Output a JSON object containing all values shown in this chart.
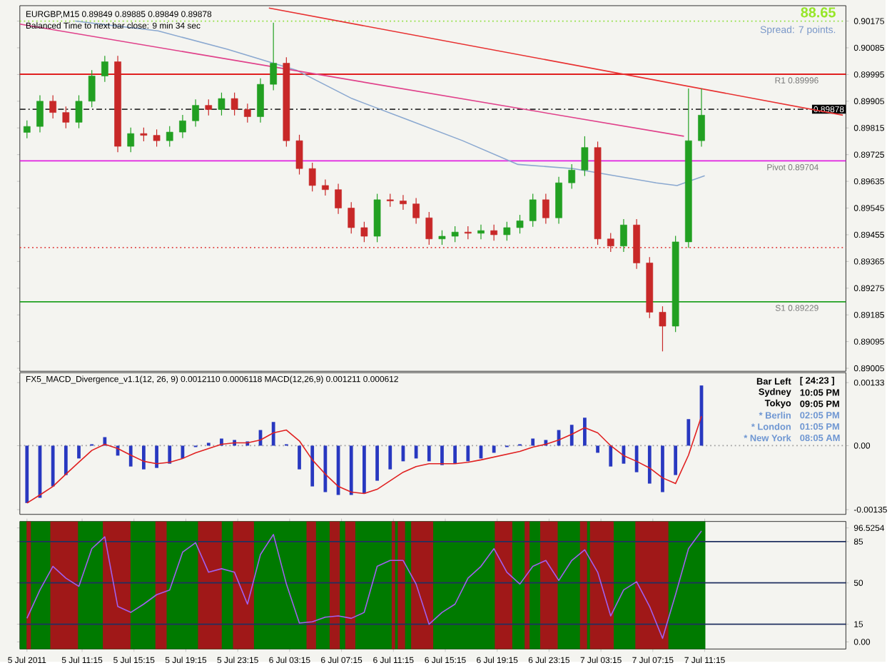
{
  "chart_data": [
    {
      "type": "candlestick",
      "title": "EURGBP,M15 0.89849 0.89885 0.89849 0.89878",
      "subtitle": "Balanced Time to next bar close: 9 min 34 sec",
      "annotations": [
        "88.65",
        "Spread: 7 points."
      ],
      "x": [
        "2011-07-05T07:00",
        "2011-07-05T08:00",
        "2011-07-05T09:00",
        "2011-07-05T10:00",
        "2011-07-05T11:00",
        "2011-07-05T12:00",
        "2011-07-05T13:00",
        "2011-07-05T14:00",
        "2011-07-05T15:00",
        "2011-07-05T16:00",
        "2011-07-05T17:00",
        "2011-07-05T18:00",
        "2011-07-05T19:00",
        "2011-07-05T20:00",
        "2011-07-05T21:00",
        "2011-07-05T22:00",
        "2011-07-05T23:00",
        "2011-07-06T00:00",
        "2011-07-06T01:00",
        "2011-07-06T02:00",
        "2011-07-06T03:00",
        "2011-07-06T04:00",
        "2011-07-06T05:00",
        "2011-07-06T06:00",
        "2011-07-06T07:00",
        "2011-07-06T08:00",
        "2011-07-06T09:00",
        "2011-07-06T10:00",
        "2011-07-06T11:00",
        "2011-07-06T12:00",
        "2011-07-06T13:00",
        "2011-07-06T14:00",
        "2011-07-06T15:00",
        "2011-07-06T16:00",
        "2011-07-06T17:00",
        "2011-07-06T18:00",
        "2011-07-06T19:00",
        "2011-07-06T20:00",
        "2011-07-06T21:00",
        "2011-07-06T22:00",
        "2011-07-06T23:00",
        "2011-07-07T00:00",
        "2011-07-07T01:00",
        "2011-07-07T02:00",
        "2011-07-07T03:00",
        "2011-07-07T04:00",
        "2011-07-07T05:00",
        "2011-07-07T06:00",
        "2011-07-07T07:00",
        "2011-07-07T08:00",
        "2011-07-07T09:00",
        "2011-07-07T10:00",
        "2011-07-07T11:00"
      ],
      "ohlc": [
        [
          0.898,
          0.8984,
          0.8978,
          0.8982
        ],
        [
          0.8982,
          0.89925,
          0.898,
          0.89905
        ],
        [
          0.89905,
          0.89925,
          0.89847,
          0.89867
        ],
        [
          0.89867,
          0.89887,
          0.89814,
          0.89834
        ],
        [
          0.89834,
          0.89925,
          0.89814,
          0.89905
        ],
        [
          0.89905,
          0.9001,
          0.89885,
          0.8999
        ],
        [
          0.8999,
          0.90058,
          0.8997,
          0.90038
        ],
        [
          0.90038,
          0.90058,
          0.89733,
          0.89753
        ],
        [
          0.89753,
          0.89816,
          0.89733,
          0.89796
        ],
        [
          0.89796,
          0.89816,
          0.8977,
          0.8979
        ],
        [
          0.8979,
          0.8981,
          0.89752,
          0.89772
        ],
        [
          0.89772,
          0.89821,
          0.89752,
          0.89801
        ],
        [
          0.89801,
          0.89859,
          0.89781,
          0.89839
        ],
        [
          0.89839,
          0.89911,
          0.89819,
          0.89891
        ],
        [
          0.89891,
          0.89911,
          0.89857,
          0.89877
        ],
        [
          0.89877,
          0.89934,
          0.89857,
          0.89914
        ],
        [
          0.89914,
          0.89934,
          0.89857,
          0.89877
        ],
        [
          0.89877,
          0.89897,
          0.89833,
          0.89853
        ],
        [
          0.89853,
          0.89982,
          0.89833,
          0.89962
        ],
        [
          0.89962,
          0.9017,
          0.89942,
          0.90033
        ],
        [
          0.90033,
          0.90053,
          0.89752,
          0.89772
        ],
        [
          0.89772,
          0.89792,
          0.89658,
          0.89678
        ],
        [
          0.89678,
          0.89698,
          0.89601,
          0.89621
        ],
        [
          0.89621,
          0.89641,
          0.89587,
          0.89607
        ],
        [
          0.89607,
          0.89627,
          0.89525,
          0.89545
        ],
        [
          0.89545,
          0.89565,
          0.89459,
          0.89479
        ],
        [
          0.89479,
          0.89499,
          0.8943,
          0.8945
        ],
        [
          0.8945,
          0.89593,
          0.8943,
          0.89573
        ],
        [
          0.89573,
          0.89593,
          0.89549,
          0.89569
        ],
        [
          0.89569,
          0.89589,
          0.89539,
          0.89559
        ],
        [
          0.89559,
          0.89579,
          0.89492,
          0.89512
        ],
        [
          0.89512,
          0.89532,
          0.89421,
          0.89441
        ],
        [
          0.89441,
          0.8947,
          0.89421,
          0.8945
        ],
        [
          0.8945,
          0.89484,
          0.8943,
          0.89464
        ],
        [
          0.89464,
          0.89484,
          0.8944,
          0.8946
        ],
        [
          0.8946,
          0.89489,
          0.8944,
          0.89469
        ],
        [
          0.89469,
          0.89489,
          0.89435,
          0.89455
        ],
        [
          0.89455,
          0.89499,
          0.89435,
          0.89479
        ],
        [
          0.89479,
          0.89522,
          0.89459,
          0.89502
        ],
        [
          0.89502,
          0.89593,
          0.89482,
          0.89573
        ],
        [
          0.89573,
          0.89593,
          0.89492,
          0.89512
        ],
        [
          0.89512,
          0.8965,
          0.89492,
          0.8963
        ],
        [
          0.8963,
          0.89693,
          0.8961,
          0.89673
        ],
        [
          0.89673,
          0.89787,
          0.89653,
          0.89749
        ],
        [
          0.89749,
          0.89769,
          0.89421,
          0.89441
        ],
        [
          0.89441,
          0.89461,
          0.89397,
          0.89417
        ],
        [
          0.89417,
          0.89508,
          0.89397,
          0.89488
        ],
        [
          0.89488,
          0.89508,
          0.8934,
          0.8936
        ],
        [
          0.8936,
          0.8938,
          0.89174,
          0.89194
        ],
        [
          0.89194,
          0.89214,
          0.89062,
          0.89147
        ],
        [
          0.89147,
          0.89451,
          0.89127,
          0.89431
        ],
        [
          0.89431,
          0.89948,
          0.89411,
          0.89772
        ],
        [
          0.89772,
          0.89948,
          0.89752,
          0.89858
        ]
      ],
      "series": [
        {
          "type": "line",
          "color": "#8aa8d0",
          "x": [
            "2011-07-05T10:43",
            "2011-07-05T17:06",
            "2011-07-05T22:27",
            "2011-07-06T03:48",
            "2011-07-06T08:03",
            "2011-07-06T12:19",
            "2011-07-06T16:35",
            "2011-07-06T20:51",
            "2011-07-07T01:07",
            "2011-07-07T04:19",
            "2011-07-07T07:31",
            "2011-07-07T09:07",
            "2011-07-07T11:15"
          ],
          "values": [
            0.90175,
            0.90142,
            0.9008,
            0.90009,
            0.89914,
            0.89843,
            0.89772,
            0.89692,
            0.89678,
            0.89654,
            0.8963,
            0.89621,
            0.89654
          ]
        },
        {
          "type": "line",
          "color": "#e0408a",
          "x": [
            "2011-07-05T06:27",
            "2011-07-07T09:39"
          ],
          "values": [
            0.90165,
            0.89787
          ]
        },
        {
          "type": "line",
          "color": "#e83030",
          "x": [
            "2011-07-06T01:39",
            "2011-07-07T21:54"
          ],
          "values": [
            0.90219,
            0.89858
          ]
        }
      ],
      "xlim": [
        "2011-07-05T06:27",
        "2011-07-07T22:08"
      ],
      "ylim": [
        0.88995,
        0.90227
      ],
      "yticks": [
        0.90175,
        0.90085,
        0.89995,
        0.89905,
        0.89815,
        0.89725,
        0.89635,
        0.89545,
        0.89455,
        0.89365,
        0.89275,
        0.89185,
        0.89095,
        0.89005
      ],
      "tick_labels": "y",
      "ref_lines": [
        {
          "axis": "y",
          "value": 0.90175,
          "color": "#90e040",
          "line_style": "dotted"
        },
        {
          "axis": "y",
          "value": 0.89996,
          "label": "R1 0.89996",
          "color": "#e02020"
        },
        {
          "axis": "y",
          "value": 0.89878,
          "label": "0.89878",
          "color": "#303030",
          "line_style": "dashed"
        },
        {
          "axis": "y",
          "value": 0.89704,
          "label": "Pivot 0.89704",
          "color": "#e020e0"
        },
        {
          "axis": "y",
          "value": 0.89412,
          "color": "#e04040",
          "line_style": "dotted"
        },
        {
          "axis": "y",
          "value": 0.89229,
          "label": "S1 0.89229",
          "color": "#20a020"
        }
      ]
    },
    {
      "type": "bar",
      "title": "FX5_MACD_Divergence_v1.1(12, 26, 9) 0.0012110 0.0006118 MACD(12,26,9) 0.001211 0.000612",
      "annotations": [
        "Bar Left",
        "[ 24:23 ]",
        "Sydney",
        "10:05 PM",
        "Tokyo",
        "09:05 PM",
        "* Berlin",
        "02:05 PM",
        "* London",
        "01:05 PM",
        "* New York",
        "08:05 AM"
      ],
      "x": [
        "2011-07-05T07:00",
        "2011-07-05T08:00",
        "2011-07-05T09:00",
        "2011-07-05T10:00",
        "2011-07-05T11:00",
        "2011-07-05T12:00",
        "2011-07-05T13:00",
        "2011-07-05T14:00",
        "2011-07-05T15:00",
        "2011-07-05T16:00",
        "2011-07-05T17:00",
        "2011-07-05T18:00",
        "2011-07-05T19:00",
        "2011-07-05T20:00",
        "2011-07-05T21:00",
        "2011-07-05T22:00",
        "2011-07-05T23:00",
        "2011-07-06T00:00",
        "2011-07-06T01:00",
        "2011-07-06T02:00",
        "2011-07-06T03:00",
        "2011-07-06T04:00",
        "2011-07-06T05:00",
        "2011-07-06T06:00",
        "2011-07-06T07:00",
        "2011-07-06T08:00",
        "2011-07-06T09:00",
        "2011-07-06T10:00",
        "2011-07-06T11:00",
        "2011-07-06T12:00",
        "2011-07-06T13:00",
        "2011-07-06T14:00",
        "2011-07-06T15:00",
        "2011-07-06T16:00",
        "2011-07-06T17:00",
        "2011-07-06T18:00",
        "2011-07-06T19:00",
        "2011-07-06T20:00",
        "2011-07-06T21:00",
        "2011-07-06T22:00",
        "2011-07-06T23:00",
        "2011-07-07T00:00",
        "2011-07-07T01:00",
        "2011-07-07T02:00",
        "2011-07-07T03:00",
        "2011-07-07T04:00",
        "2011-07-07T05:00",
        "2011-07-07T06:00",
        "2011-07-07T07:00",
        "2011-07-07T08:00",
        "2011-07-07T09:00",
        "2011-07-07T10:00",
        "2011-07-07T11:00"
      ],
      "series": [
        {
          "type": "bar",
          "color": "#2838c0",
          "values": [
            -0.00121,
            -0.0011,
            -0.00086,
            -0.00062,
            -0.00027,
            3e-05,
            0.00018,
            -0.00021,
            -0.00044,
            -0.0005,
            -0.00047,
            -0.00038,
            -0.00027,
            -3e-05,
            6e-05,
            0.00015,
            0.00012,
            9e-05,
            0.00033,
            0.0005,
            3e-05,
            -0.0005,
            -0.00086,
            -0.00098,
            -0.00104,
            -0.00104,
            -0.00101,
            -0.00074,
            -0.0005,
            -0.00033,
            -0.00027,
            -0.00033,
            -0.00041,
            -0.00038,
            -0.00033,
            -0.00027,
            -0.00015,
            -3e-05,
            3e-05,
            0.00015,
            0.00012,
            0.00033,
            0.00044,
            0.00059,
            -0.00015,
            -0.00044,
            -0.00038,
            -0.00056,
            -0.0008,
            -0.00098,
            -0.00062,
            0.00056,
            0.00127
          ]
        },
        {
          "type": "line",
          "color": "#e02020",
          "values": [
            -0.00121,
            -0.00104,
            -0.00086,
            -0.0006,
            -0.00035,
            -0.0001,
            3e-05,
            -6e-05,
            -0.0002,
            -0.00033,
            -0.00038,
            -0.00035,
            -0.00027,
            -0.00015,
            -6e-05,
            3e-05,
            6e-05,
            6e-05,
            0.00012,
            0.00027,
            0.00033,
            0.0001,
            -0.0003,
            -0.0006,
            -0.00086,
            -0.00098,
            -0.00101,
            -0.00092,
            -0.00074,
            -0.00056,
            -0.00044,
            -0.00038,
            -0.00038,
            -0.00038,
            -0.00035,
            -0.0003,
            -0.00024,
            -0.00018,
            -0.00012,
            -3e-05,
            3e-05,
            0.00012,
            0.00024,
            0.00038,
            0.00027,
            0,
            -0.00021,
            -0.00033,
            -0.00047,
            -0.00068,
            -0.0008,
            -0.0002,
            0.00062
          ]
        }
      ],
      "xlim": [
        "2011-07-05T06:27",
        "2011-07-07T22:08"
      ],
      "ylim": [
        -0.00145,
        0.00154
      ],
      "yticks": [
        0.00133,
        {
          "value": 0,
          "label": "0.00"
        },
        -0.00135
      ],
      "tick_labels": "y",
      "ref_lines": [
        {
          "axis": "y",
          "value": 0,
          "color": "#a0a0a0",
          "line_style": "dotted"
        }
      ]
    },
    {
      "type": "line",
      "x": [
        "2011-07-05T07:00",
        "2011-07-05T08:00",
        "2011-07-05T09:00",
        "2011-07-05T10:00",
        "2011-07-05T11:00",
        "2011-07-05T12:00",
        "2011-07-05T13:00",
        "2011-07-05T14:00",
        "2011-07-05T15:00",
        "2011-07-05T16:00",
        "2011-07-05T17:00",
        "2011-07-05T18:00",
        "2011-07-05T19:00",
        "2011-07-05T20:00",
        "2011-07-05T21:00",
        "2011-07-05T22:00",
        "2011-07-05T23:00",
        "2011-07-06T00:00",
        "2011-07-06T01:00",
        "2011-07-06T02:00",
        "2011-07-06T03:00",
        "2011-07-06T04:00",
        "2011-07-06T05:00",
        "2011-07-06T06:00",
        "2011-07-06T07:00",
        "2011-07-06T08:00",
        "2011-07-06T09:00",
        "2011-07-06T10:00",
        "2011-07-06T11:00",
        "2011-07-06T12:00",
        "2011-07-06T13:00",
        "2011-07-06T14:00",
        "2011-07-06T15:00",
        "2011-07-06T16:00",
        "2011-07-06T17:00",
        "2011-07-06T18:00",
        "2011-07-06T19:00",
        "2011-07-06T20:00",
        "2011-07-06T21:00",
        "2011-07-06T22:00",
        "2011-07-06T23:00",
        "2011-07-07T00:00",
        "2011-07-07T01:00",
        "2011-07-07T02:00",
        "2011-07-07T03:00",
        "2011-07-07T04:00",
        "2011-07-07T05:00",
        "2011-07-07T06:00",
        "2011-07-07T07:00",
        "2011-07-07T08:00",
        "2011-07-07T09:00",
        "2011-07-07T10:00",
        "2011-07-07T11:00"
      ],
      "series": [
        {
          "color": "#a060f0",
          "values": [
            20,
            44,
            64,
            54,
            47,
            79,
            89,
            30,
            25,
            32,
            40,
            44,
            76,
            84,
            59,
            62,
            59,
            32,
            74,
            91,
            49,
            16,
            17,
            21,
            22,
            20,
            25,
            64,
            69,
            69,
            49,
            15,
            25,
            32,
            54,
            64,
            79,
            59,
            49,
            64,
            69,
            52,
            69,
            78,
            59,
            22,
            44,
            51,
            30,
            3,
            40,
            79,
            94
          ]
        }
      ],
      "xlim": [
        "2011-07-05T06:27",
        "2011-07-07T22:08"
      ],
      "ylim": [
        -6,
        102
      ],
      "xticks": [
        {
          "value": "2011-07-05T07:00",
          "label": "5 Jul 2011"
        },
        {
          "value": "2011-07-05T11:15",
          "label": "5 Jul 11:15"
        },
        {
          "value": "2011-07-05T15:15",
          "label": "5 Jul 15:15"
        },
        {
          "value": "2011-07-05T19:15",
          "label": "5 Jul 19:15"
        },
        {
          "value": "2011-07-05T23:15",
          "label": "5 Jul 23:15"
        },
        {
          "value": "2011-07-06T03:15",
          "label": "6 Jul 03:15"
        },
        {
          "value": "2011-07-06T07:15",
          "label": "6 Jul 07:15"
        },
        {
          "value": "2011-07-06T11:15",
          "label": "6 Jul 11:15"
        },
        {
          "value": "2011-07-06T15:15",
          "label": "6 Jul 15:15"
        },
        {
          "value": "2011-07-06T19:15",
          "label": "6 Jul 19:15"
        },
        {
          "value": "2011-07-06T23:15",
          "label": "6 Jul 23:15"
        },
        {
          "value": "2011-07-07T03:15",
          "label": "7 Jul 03:15"
        },
        {
          "value": "2011-07-07T07:15",
          "label": "7 Jul 07:15"
        },
        {
          "value": "2011-07-07T11:15",
          "label": "7 Jul 11:15"
        }
      ],
      "yticks": [
        96.5254,
        85,
        50,
        15,
        {
          "value": 0,
          "label": "0.00"
        }
      ],
      "ref_lines": [
        {
          "axis": "y",
          "value": 85,
          "color": "#203060"
        },
        {
          "axis": "y",
          "value": 50,
          "color": "#203060"
        },
        {
          "axis": "y",
          "value": 15,
          "color": "#203060"
        }
      ],
      "bands": [
        {
          "axis": "x",
          "from": "2011-07-05T06:27",
          "to": "2011-07-07T11:18",
          "color": "#007a00"
        },
        {
          "axis": "x",
          "from": "2011-07-05T06:58",
          "to": "2011-07-05T07:18",
          "color": "#a01818"
        },
        {
          "axis": "x",
          "from": "2011-07-05T08:48",
          "to": "2011-07-05T10:56",
          "color": "#a01818"
        },
        {
          "axis": "x",
          "from": "2011-07-05T12:51",
          "to": "2011-07-05T14:59",
          "color": "#a01818"
        },
        {
          "axis": "x",
          "from": "2011-07-05T16:54",
          "to": "2011-07-05T17:46",
          "color": "#a01818"
        },
        {
          "axis": "x",
          "from": "2011-07-05T20:11",
          "to": "2011-07-05T22:01",
          "color": "#a01818"
        },
        {
          "axis": "x",
          "from": "2011-07-05T22:53",
          "to": "2011-07-06T00:30",
          "color": "#a01818"
        },
        {
          "axis": "x",
          "from": "2011-07-06T04:33",
          "to": "2011-07-06T05:17",
          "color": "#a01818"
        },
        {
          "axis": "x",
          "from": "2011-07-06T06:20",
          "to": "2011-07-06T07:07",
          "color": "#a01818"
        },
        {
          "axis": "x",
          "from": "2011-07-06T07:32",
          "to": "2011-07-06T08:19",
          "color": "#a01818"
        },
        {
          "axis": "x",
          "from": "2011-07-06T11:07",
          "to": "2011-07-06T11:23",
          "color": "#a01818"
        },
        {
          "axis": "x",
          "from": "2011-07-06T11:35",
          "to": "2011-07-06T12:09",
          "color": "#a01818"
        },
        {
          "axis": "x",
          "from": "2011-07-06T12:37",
          "to": "2011-07-06T14:19",
          "color": "#a01818"
        },
        {
          "axis": "x",
          "from": "2011-07-06T19:04",
          "to": "2011-07-06T20:25",
          "color": "#a01818"
        },
        {
          "axis": "x",
          "from": "2011-07-06T21:22",
          "to": "2011-07-06T21:45",
          "color": "#a01818"
        },
        {
          "axis": "x",
          "from": "2011-07-06T22:34",
          "to": "2011-07-06T23:55",
          "color": "#a01818"
        },
        {
          "axis": "x",
          "from": "2011-07-07T01:38",
          "to": "2011-07-07T02:11",
          "color": "#a01818"
        },
        {
          "axis": "x",
          "from": "2011-07-07T02:24",
          "to": "2011-07-07T04:14",
          "color": "#a01818"
        },
        {
          "axis": "x",
          "from": "2011-07-07T05:54",
          "to": "2011-07-07T08:27",
          "color": "#a01818"
        }
      ]
    }
  ]
}
